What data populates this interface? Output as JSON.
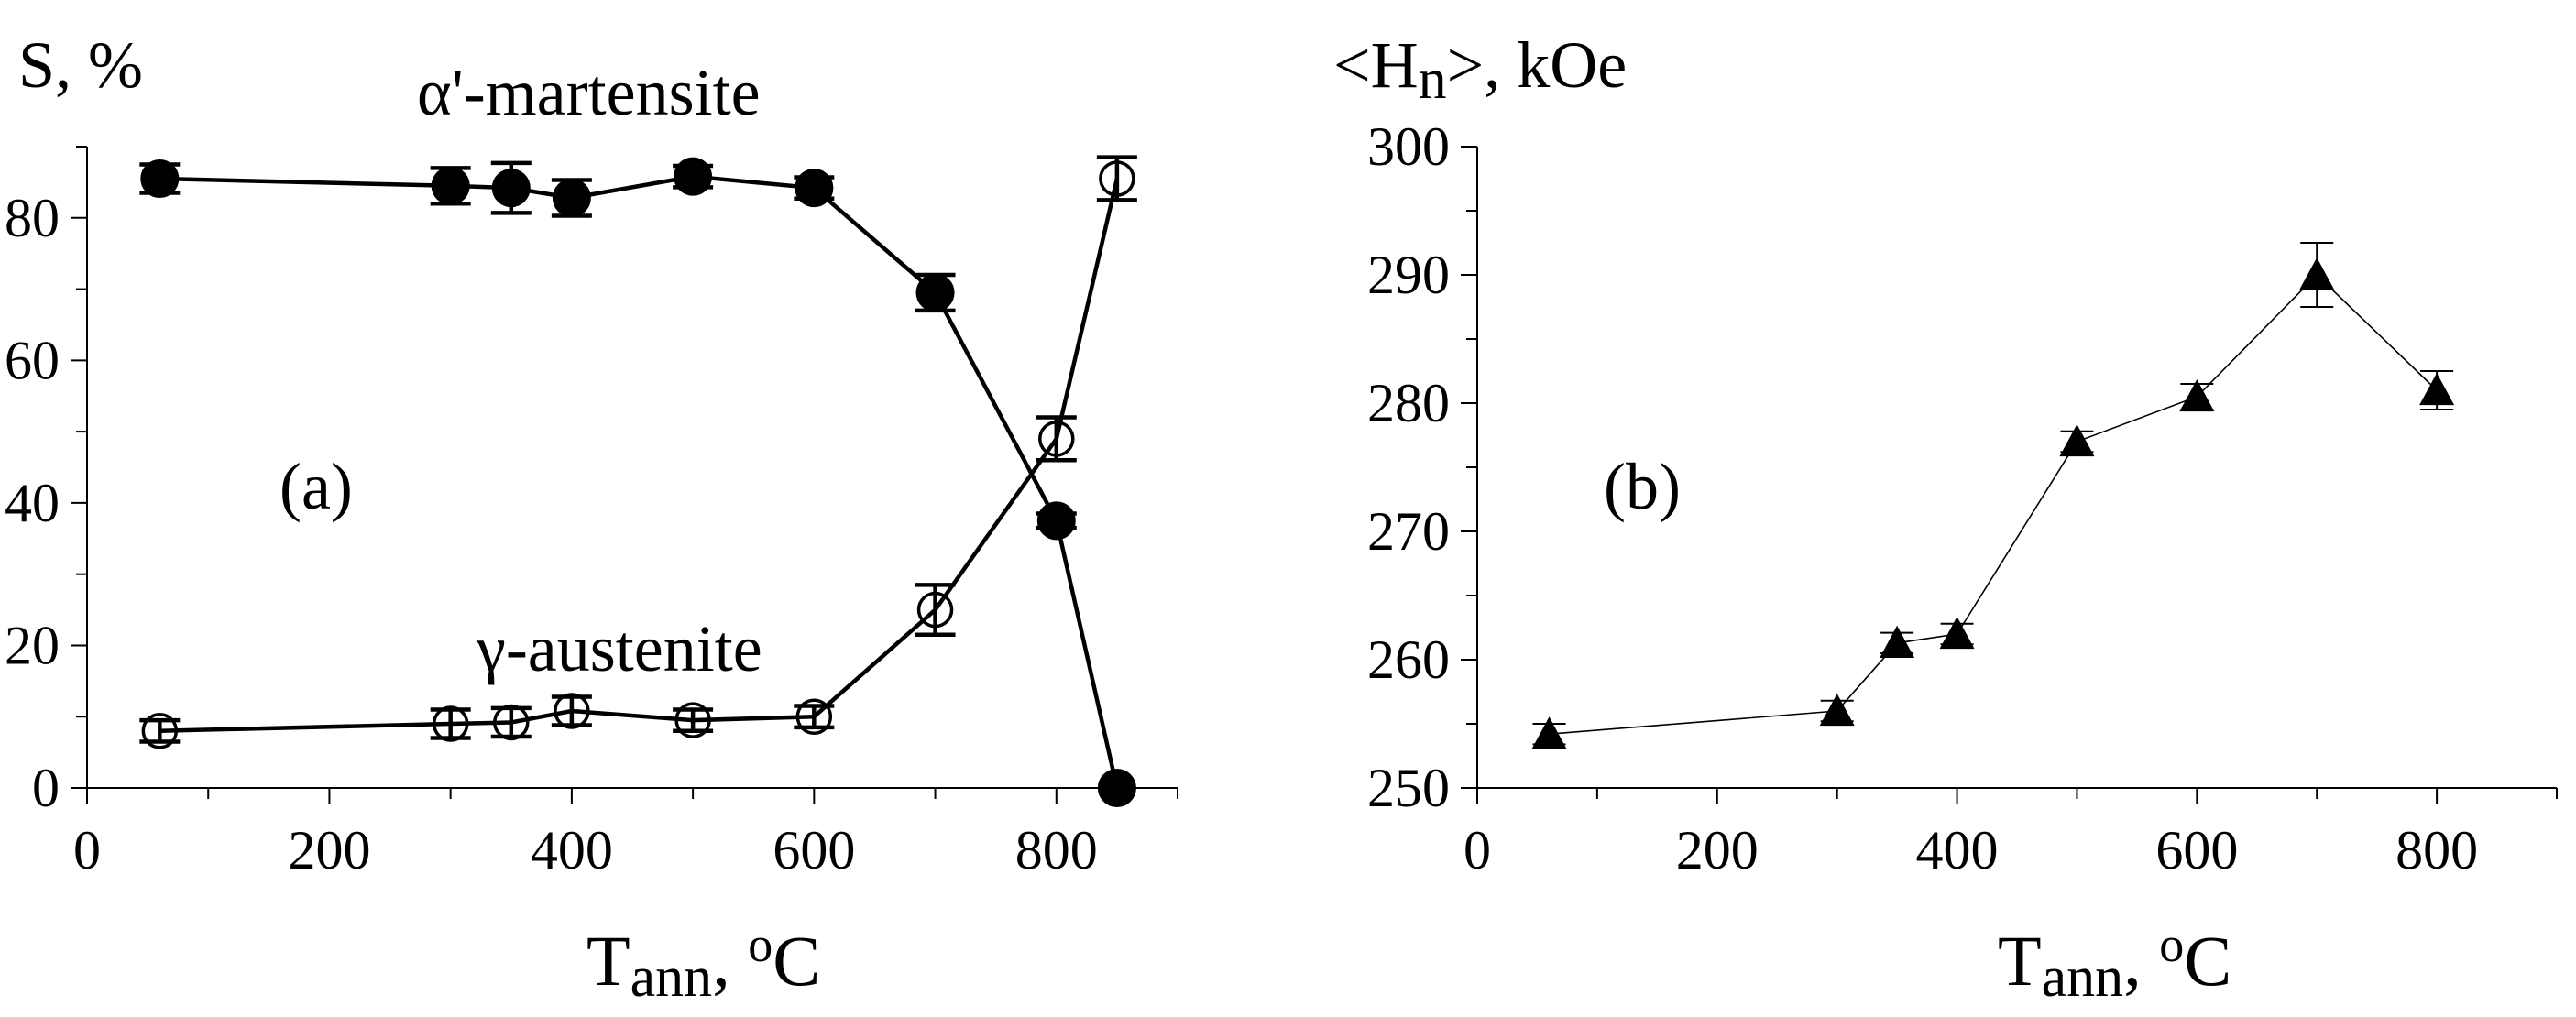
{
  "chart_data": [
    {
      "panel": "(a)",
      "type": "line",
      "ylabel": "S, %",
      "xlabel": {
        "main": "T",
        "sub": "ann",
        "unit_pre": ", ",
        "unit_sup": "o",
        "unit_post": "C"
      },
      "xlim": [
        0,
        900
      ],
      "ylim": [
        0,
        90
      ],
      "xticks": [
        0,
        200,
        400,
        600,
        800
      ],
      "yticks": [
        0,
        20,
        40,
        60,
        80
      ],
      "series": [
        {
          "name": "α'-martensite",
          "marker": "filled-circle",
          "x": [
            60,
            300,
            350,
            400,
            500,
            600,
            700,
            800,
            850
          ],
          "y": [
            85.5,
            84.5,
            84.2,
            82.8,
            85.8,
            84.2,
            69.5,
            37.5,
            0
          ],
          "err": [
            2.0,
            2.5,
            3.5,
            2.5,
            1.5,
            1.5,
            2.5,
            1.0,
            0
          ]
        },
        {
          "name": "γ-austenite",
          "marker": "open-circle",
          "x": [
            60,
            300,
            350,
            400,
            500,
            600,
            700,
            800,
            850
          ],
          "y": [
            8.0,
            9.0,
            9.2,
            10.8,
            9.5,
            10.0,
            25.0,
            49.0,
            85.5
          ],
          "err": [
            1.5,
            2.0,
            2.0,
            2.0,
            1.5,
            1.5,
            3.5,
            3.0,
            3.0
          ]
        }
      ]
    },
    {
      "panel": "(b)",
      "type": "line",
      "ylabel": {
        "pre": "<H",
        "sub": "n",
        "post": ">, kOe"
      },
      "xlabel": {
        "main": "T",
        "sub": "ann",
        "unit_pre": ", ",
        "unit_sup": "o",
        "unit_post": "C"
      },
      "xlim": [
        0,
        900
      ],
      "ylim": [
        250,
        300
      ],
      "xticks": [
        0,
        200,
        400,
        600,
        800
      ],
      "yticks": [
        250,
        260,
        270,
        280,
        290,
        300
      ],
      "series": [
        {
          "marker": "filled-triangle",
          "x": [
            60,
            300,
            350,
            400,
            500,
            600,
            700,
            800
          ],
          "y": [
            254.2,
            256.0,
            261.3,
            262.0,
            277.0,
            280.5,
            290.0,
            281.0
          ],
          "err": [
            0.8,
            0.8,
            0.8,
            0.8,
            0.8,
            1.0,
            2.5,
            1.5
          ]
        }
      ]
    }
  ]
}
